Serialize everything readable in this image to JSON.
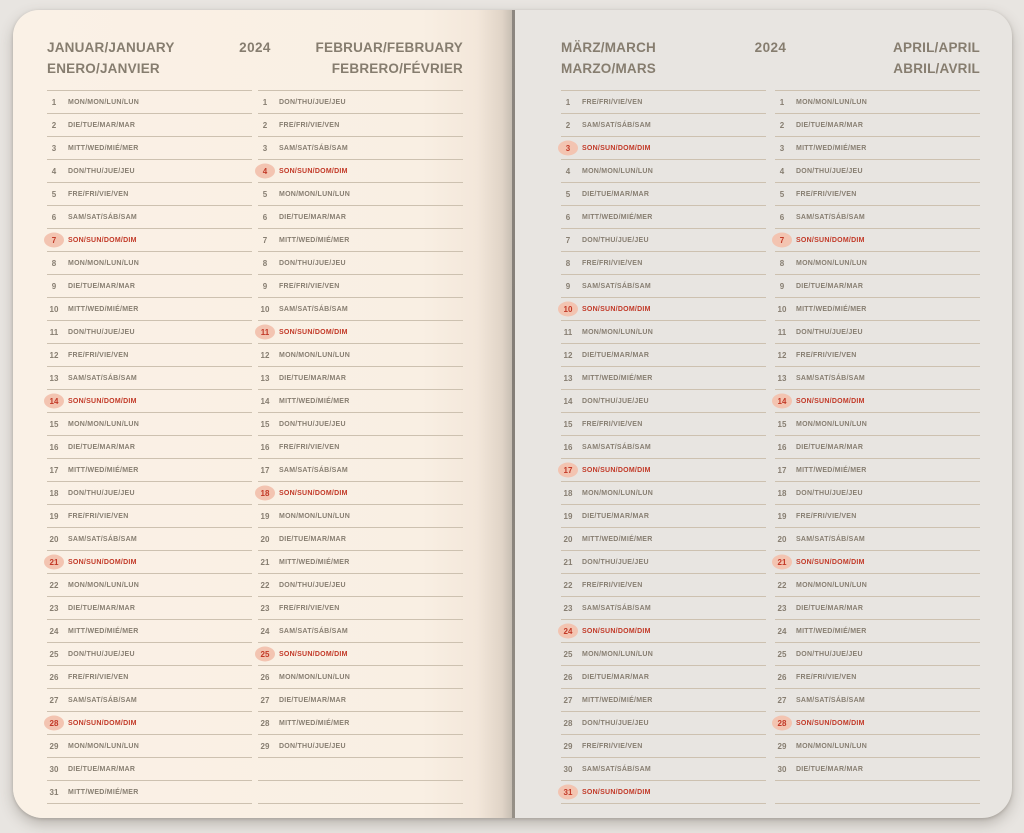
{
  "book": {
    "colors": {
      "outer_bg": "#e8e5e1",
      "page_bg": "#f9efe3",
      "rule": "#cdc1b0",
      "text": "#877e71",
      "header_text": "#867d6f",
      "sunday_red": "#c23927",
      "sunday_circle": "#f3c4b1",
      "spine": "#857f78"
    },
    "weekday_labels": {
      "mon": "MON/MON/LUN/LUN",
      "tue": "DIE/TUE/MAR/MAR",
      "wed": "MITT/WED/MIÉ/MER",
      "thu": "DON/THU/JUE/JEU",
      "fri": "FRE/FRI/VIE/VEN",
      "sat": "SAM/SAT/SÁB/SAM",
      "sun": "SON/SUN/DOM/DIM"
    },
    "pages": [
      {
        "id": "left",
        "year_label": "2024",
        "months": [
          {
            "title_line1": "JANUAR/JANUARY",
            "title_line2": "ENERO/JANVIER",
            "blank_rows": 0,
            "days": [
              [
                1,
                "mon"
              ],
              [
                2,
                "tue"
              ],
              [
                3,
                "wed"
              ],
              [
                4,
                "thu"
              ],
              [
                5,
                "fri"
              ],
              [
                6,
                "sat"
              ],
              [
                7,
                "sun"
              ],
              [
                8,
                "mon"
              ],
              [
                9,
                "tue"
              ],
              [
                10,
                "wed"
              ],
              [
                11,
                "thu"
              ],
              [
                12,
                "fri"
              ],
              [
                13,
                "sat"
              ],
              [
                14,
                "sun"
              ],
              [
                15,
                "mon"
              ],
              [
                16,
                "tue"
              ],
              [
                17,
                "wed"
              ],
              [
                18,
                "thu"
              ],
              [
                19,
                "fri"
              ],
              [
                20,
                "sat"
              ],
              [
                21,
                "sun"
              ],
              [
                22,
                "mon"
              ],
              [
                23,
                "tue"
              ],
              [
                24,
                "wed"
              ],
              [
                25,
                "thu"
              ],
              [
                26,
                "fri"
              ],
              [
                27,
                "sat"
              ],
              [
                28,
                "sun"
              ],
              [
                29,
                "mon"
              ],
              [
                30,
                "tue"
              ],
              [
                31,
                "wed"
              ]
            ]
          },
          {
            "title_line1": "FEBRUAR/FEBRUARY",
            "title_line2": "FEBRERO/FÉVRIER",
            "blank_rows": 2,
            "days": [
              [
                1,
                "thu"
              ],
              [
                2,
                "fri"
              ],
              [
                3,
                "sat"
              ],
              [
                4,
                "sun"
              ],
              [
                5,
                "mon"
              ],
              [
                6,
                "tue"
              ],
              [
                7,
                "wed"
              ],
              [
                8,
                "thu"
              ],
              [
                9,
                "fri"
              ],
              [
                10,
                "sat"
              ],
              [
                11,
                "sun"
              ],
              [
                12,
                "mon"
              ],
              [
                13,
                "tue"
              ],
              [
                14,
                "wed"
              ],
              [
                15,
                "thu"
              ],
              [
                16,
                "fri"
              ],
              [
                17,
                "sat"
              ],
              [
                18,
                "sun"
              ],
              [
                19,
                "mon"
              ],
              [
                20,
                "tue"
              ],
              [
                21,
                "wed"
              ],
              [
                22,
                "thu"
              ],
              [
                23,
                "fri"
              ],
              [
                24,
                "sat"
              ],
              [
                25,
                "sun"
              ],
              [
                26,
                "mon"
              ],
              [
                27,
                "tue"
              ],
              [
                28,
                "wed"
              ],
              [
                29,
                "thu"
              ]
            ]
          }
        ]
      },
      {
        "id": "right",
        "year_label": "2024",
        "months": [
          {
            "title_line1": "MÄRZ/MARCH",
            "title_line2": "MARZO/MARS",
            "blank_rows": 0,
            "days": [
              [
                1,
                "fri"
              ],
              [
                2,
                "sat"
              ],
              [
                3,
                "sun"
              ],
              [
                4,
                "mon"
              ],
              [
                5,
                "tue"
              ],
              [
                6,
                "wed"
              ],
              [
                7,
                "thu"
              ],
              [
                8,
                "fri"
              ],
              [
                9,
                "sat"
              ],
              [
                10,
                "sun"
              ],
              [
                11,
                "mon"
              ],
              [
                12,
                "tue"
              ],
              [
                13,
                "wed"
              ],
              [
                14,
                "thu"
              ],
              [
                15,
                "fri"
              ],
              [
                16,
                "sat"
              ],
              [
                17,
                "sun"
              ],
              [
                18,
                "mon"
              ],
              [
                19,
                "tue"
              ],
              [
                20,
                "wed"
              ],
              [
                21,
                "thu"
              ],
              [
                22,
                "fri"
              ],
              [
                23,
                "sat"
              ],
              [
                24,
                "sun"
              ],
              [
                25,
                "mon"
              ],
              [
                26,
                "tue"
              ],
              [
                27,
                "wed"
              ],
              [
                28,
                "thu"
              ],
              [
                29,
                "fri"
              ],
              [
                30,
                "sat"
              ],
              [
                31,
                "sun"
              ]
            ]
          },
          {
            "title_line1": "APRIL/APRIL",
            "title_line2": "ABRIL/AVRIL",
            "blank_rows": 1,
            "days": [
              [
                1,
                "mon"
              ],
              [
                2,
                "tue"
              ],
              [
                3,
                "wed"
              ],
              [
                4,
                "thu"
              ],
              [
                5,
                "fri"
              ],
              [
                6,
                "sat"
              ],
              [
                7,
                "sun"
              ],
              [
                8,
                "mon"
              ],
              [
                9,
                "tue"
              ],
              [
                10,
                "wed"
              ],
              [
                11,
                "thu"
              ],
              [
                12,
                "fri"
              ],
              [
                13,
                "sat"
              ],
              [
                14,
                "sun"
              ],
              [
                15,
                "mon"
              ],
              [
                16,
                "tue"
              ],
              [
                17,
                "wed"
              ],
              [
                18,
                "thu"
              ],
              [
                19,
                "fri"
              ],
              [
                20,
                "sat"
              ],
              [
                21,
                "sun"
              ],
              [
                22,
                "mon"
              ],
              [
                23,
                "tue"
              ],
              [
                24,
                "wed"
              ],
              [
                25,
                "thu"
              ],
              [
                26,
                "fri"
              ],
              [
                27,
                "sat"
              ],
              [
                28,
                "sun"
              ],
              [
                29,
                "mon"
              ],
              [
                30,
                "tue"
              ]
            ]
          }
        ]
      }
    ]
  }
}
